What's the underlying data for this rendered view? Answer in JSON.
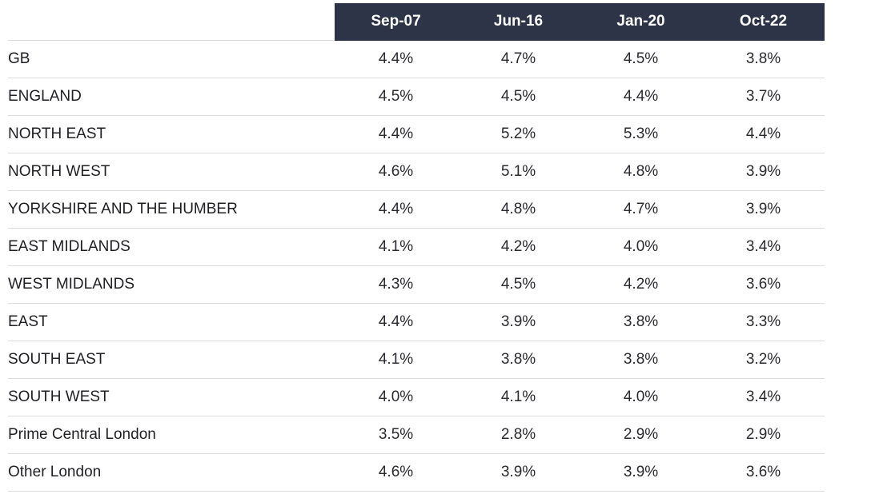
{
  "chart_data": {
    "type": "table",
    "columns": [
      "Sep-07",
      "Jun-16",
      "Jan-20",
      "Oct-22"
    ],
    "rows": [
      {
        "label": "GB",
        "values": [
          "4.4%",
          "4.7%",
          "4.5%",
          "3.8%"
        ]
      },
      {
        "label": "ENGLAND",
        "values": [
          "4.5%",
          "4.5%",
          "4.4%",
          "3.7%"
        ]
      },
      {
        "label": "NORTH EAST",
        "values": [
          "4.4%",
          "5.2%",
          "5.3%",
          "4.4%"
        ]
      },
      {
        "label": "NORTH WEST",
        "values": [
          "4.6%",
          "5.1%",
          "4.8%",
          "3.9%"
        ]
      },
      {
        "label": "YORKSHIRE AND THE HUMBER",
        "values": [
          "4.4%",
          "4.8%",
          "4.7%",
          "3.9%"
        ]
      },
      {
        "label": "EAST MIDLANDS",
        "values": [
          "4.1%",
          "4.2%",
          "4.0%",
          "3.4%"
        ]
      },
      {
        "label": "WEST MIDLANDS",
        "values": [
          "4.3%",
          "4.5%",
          "4.2%",
          "3.6%"
        ]
      },
      {
        "label": "EAST",
        "values": [
          "4.4%",
          "3.9%",
          "3.8%",
          "3.3%"
        ]
      },
      {
        "label": "SOUTH EAST",
        "values": [
          "4.1%",
          "3.8%",
          "3.8%",
          "3.2%"
        ]
      },
      {
        "label": "SOUTH WEST",
        "values": [
          "4.0%",
          "4.1%",
          "4.0%",
          "3.4%"
        ]
      },
      {
        "label": "Prime Central London",
        "values": [
          "3.5%",
          "2.8%",
          "2.9%",
          "2.9%"
        ]
      },
      {
        "label": "Other London",
        "values": [
          "4.6%",
          "3.9%",
          "3.9%",
          "3.6%"
        ]
      }
    ]
  },
  "colors": {
    "header_background": "#2e3447",
    "header_text": "#ffffff",
    "row_divider": "#dcdcdc"
  }
}
